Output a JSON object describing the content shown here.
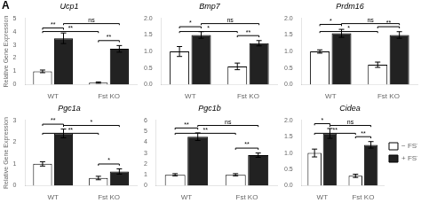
{
  "chart_data": [
    {
      "type": "bar",
      "title": "Ucp1",
      "y_label": "Relative Gene Expression",
      "categories": [
        "WT",
        "Fst KO"
      ],
      "series": [
        {
          "name": "− FST",
          "color": "#ffffff",
          "values": [
            1.0,
            0.15
          ],
          "errors": [
            0.1,
            0.05
          ]
        },
        {
          "name": "+ FST",
          "color": "#222222",
          "values": [
            3.5,
            2.7
          ],
          "errors": [
            0.4,
            0.25
          ]
        }
      ],
      "ylim": [
        0,
        5
      ],
      "yticks": [
        0,
        1,
        2,
        3,
        4,
        5
      ],
      "grid": false,
      "annotations": [
        {
          "text": "A"
        },
        {
          "text": "**",
          "category": "WT"
        },
        {
          "text": "**",
          "category": "Fst KO"
        },
        {
          "text": "**",
          "series": "− FST"
        },
        {
          "text": "ns",
          "series": "+ FST"
        }
      ]
    },
    {
      "type": "bar",
      "title": "Bmp7",
      "categories": [
        "WT",
        "Fst KO"
      ],
      "series": [
        {
          "name": "− FST",
          "color": "#ffffff",
          "values": [
            1.0,
            0.55
          ],
          "errors": [
            0.15,
            0.1
          ]
        },
        {
          "name": "+ FST",
          "color": "#222222",
          "values": [
            1.5,
            1.25
          ],
          "errors": [
            0.1,
            0.08
          ]
        }
      ],
      "ylim": [
        0.0,
        2.0
      ],
      "yticks": [
        {
          "value": 0,
          "label": "0.0"
        },
        0.5,
        {
          "value": 1,
          "label": "1.0"
        },
        1.5,
        {
          "value": 2,
          "label": "2.0"
        }
      ],
      "grid": false,
      "annotations": [
        {
          "text": "*",
          "category": "WT"
        },
        {
          "text": "**",
          "category": "Fst KO"
        },
        {
          "text": "*",
          "series": "− FST"
        },
        {
          "text": "ns",
          "series": "+ FST"
        }
      ]
    },
    {
      "type": "bar",
      "title": "Prdm16",
      "categories": [
        "WT",
        "Fst KO"
      ],
      "series": [
        {
          "name": "− FST",
          "color": "#ffffff",
          "values": [
            1.0,
            0.6
          ],
          "errors": [
            0.05,
            0.08
          ]
        },
        {
          "name": "+ FST",
          "color": "#222222",
          "values": [
            1.55,
            1.5
          ],
          "errors": [
            0.12,
            0.1
          ]
        }
      ],
      "ylim": [
        0.0,
        2.0
      ],
      "yticks": [
        {
          "value": 0,
          "label": "0.0"
        },
        0.5,
        {
          "value": 1,
          "label": "1.0"
        },
        1.5,
        {
          "value": 2,
          "label": "2.0"
        }
      ],
      "grid": false,
      "annotations": [
        {
          "text": "*",
          "category": "WT"
        },
        {
          "text": "**",
          "category": "Fst KO"
        },
        {
          "text": "*",
          "series": "− FST"
        },
        {
          "text": "ns",
          "series": "+ FST"
        }
      ]
    },
    {
      "type": "bar",
      "title": "Pgc1a",
      "y_label": "Relative Gene Expression",
      "categories": [
        "WT",
        "Fst KO"
      ],
      "series": [
        {
          "name": "− FST",
          "color": "#ffffff",
          "values": [
            1.0,
            0.35
          ],
          "errors": [
            0.1,
            0.08
          ]
        },
        {
          "name": "+ FST",
          "color": "#222222",
          "values": [
            2.4,
            0.65
          ],
          "errors": [
            0.2,
            0.12
          ]
        }
      ],
      "ylim": [
        0,
        3
      ],
      "yticks": [
        0,
        1,
        2,
        3
      ],
      "grid": false,
      "annotations": [
        {
          "text": "**",
          "category": "WT"
        },
        {
          "text": "*",
          "category": "Fst KO"
        },
        {
          "text": "**",
          "series": "− FST"
        },
        {
          "text": "*",
          "series": "+ FST"
        }
      ]
    },
    {
      "type": "bar",
      "title": "Pgc1b",
      "categories": [
        "WT",
        "Fst KO"
      ],
      "series": [
        {
          "name": "− FST",
          "color": "#ffffff",
          "values": [
            1.0,
            1.0
          ],
          "errors": [
            0.1,
            0.1
          ]
        },
        {
          "name": "+ FST",
          "color": "#222222",
          "values": [
            4.5,
            2.8
          ],
          "errors": [
            0.35,
            0.2
          ]
        }
      ],
      "ylim": [
        0,
        6
      ],
      "yticks": [
        0,
        1,
        2,
        3,
        4,
        5,
        6
      ],
      "grid": false,
      "annotations": [
        {
          "text": "**",
          "category": "WT"
        },
        {
          "text": "**",
          "category": "Fst KO"
        },
        {
          "text": "**",
          "series": "− FST"
        },
        {
          "text": "ns",
          "series": "+ FST"
        }
      ]
    },
    {
      "type": "bar",
      "title": "Cidea",
      "categories": [
        "WT",
        "Fst KO"
      ],
      "series": [
        {
          "name": "− FST",
          "color": "#ffffff",
          "values": [
            1.0,
            0.3
          ],
          "errors": [
            0.12,
            0.05
          ]
        },
        {
          "name": "+ FST",
          "color": "#222222",
          "values": [
            1.6,
            1.25
          ],
          "errors": [
            0.15,
            0.1
          ]
        }
      ],
      "ylim": [
        0.0,
        2.0
      ],
      "yticks": [
        {
          "value": 0,
          "label": "0.0"
        },
        0.5,
        {
          "value": 1,
          "label": "1.0"
        },
        1.5,
        {
          "value": 2,
          "label": "2.0"
        }
      ],
      "grid": false,
      "legend": "right",
      "annotations": [
        {
          "text": "*",
          "category": "WT"
        },
        {
          "text": "**",
          "category": "Fst KO"
        },
        {
          "text": "**",
          "series": "− FST"
        },
        {
          "text": "ns",
          "series": "+ FST"
        }
      ]
    }
  ]
}
